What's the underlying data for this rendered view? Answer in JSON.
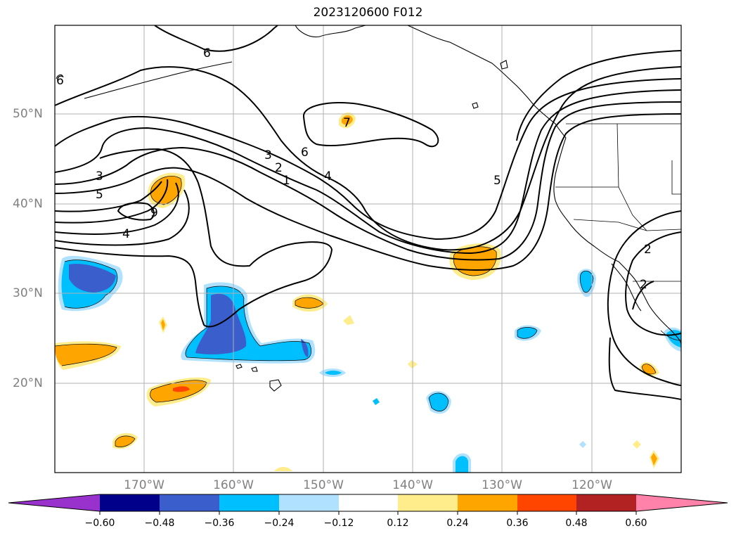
{
  "title": "2023120600 F012",
  "lat_labels": [
    "50°N",
    "40°N",
    "30°N",
    "20°N"
  ],
  "lon_labels": [
    "170°W",
    "160°W",
    "150°W",
    "140°W",
    "130°W",
    "120°W"
  ],
  "colorbar": {
    "ticks": [
      "−0.60",
      "−0.48",
      "−0.36",
      "−0.24",
      "−0.12",
      "0.12",
      "0.24",
      "0.36",
      "0.48",
      "0.60"
    ],
    "colors": [
      "#9932cc",
      "#00008b",
      "#3a5fcd",
      "#00bfff",
      "#b0e2ff",
      "#ffffff",
      "#ffec8b",
      "#ffa500",
      "#ff4500",
      "#b22222",
      "#ff82ab"
    ]
  },
  "contour_labels": [
    "6",
    "6",
    "3",
    "2",
    "1",
    "4",
    "3",
    "5",
    "9",
    "4",
    "5",
    "6",
    "7",
    "2",
    "2"
  ]
}
